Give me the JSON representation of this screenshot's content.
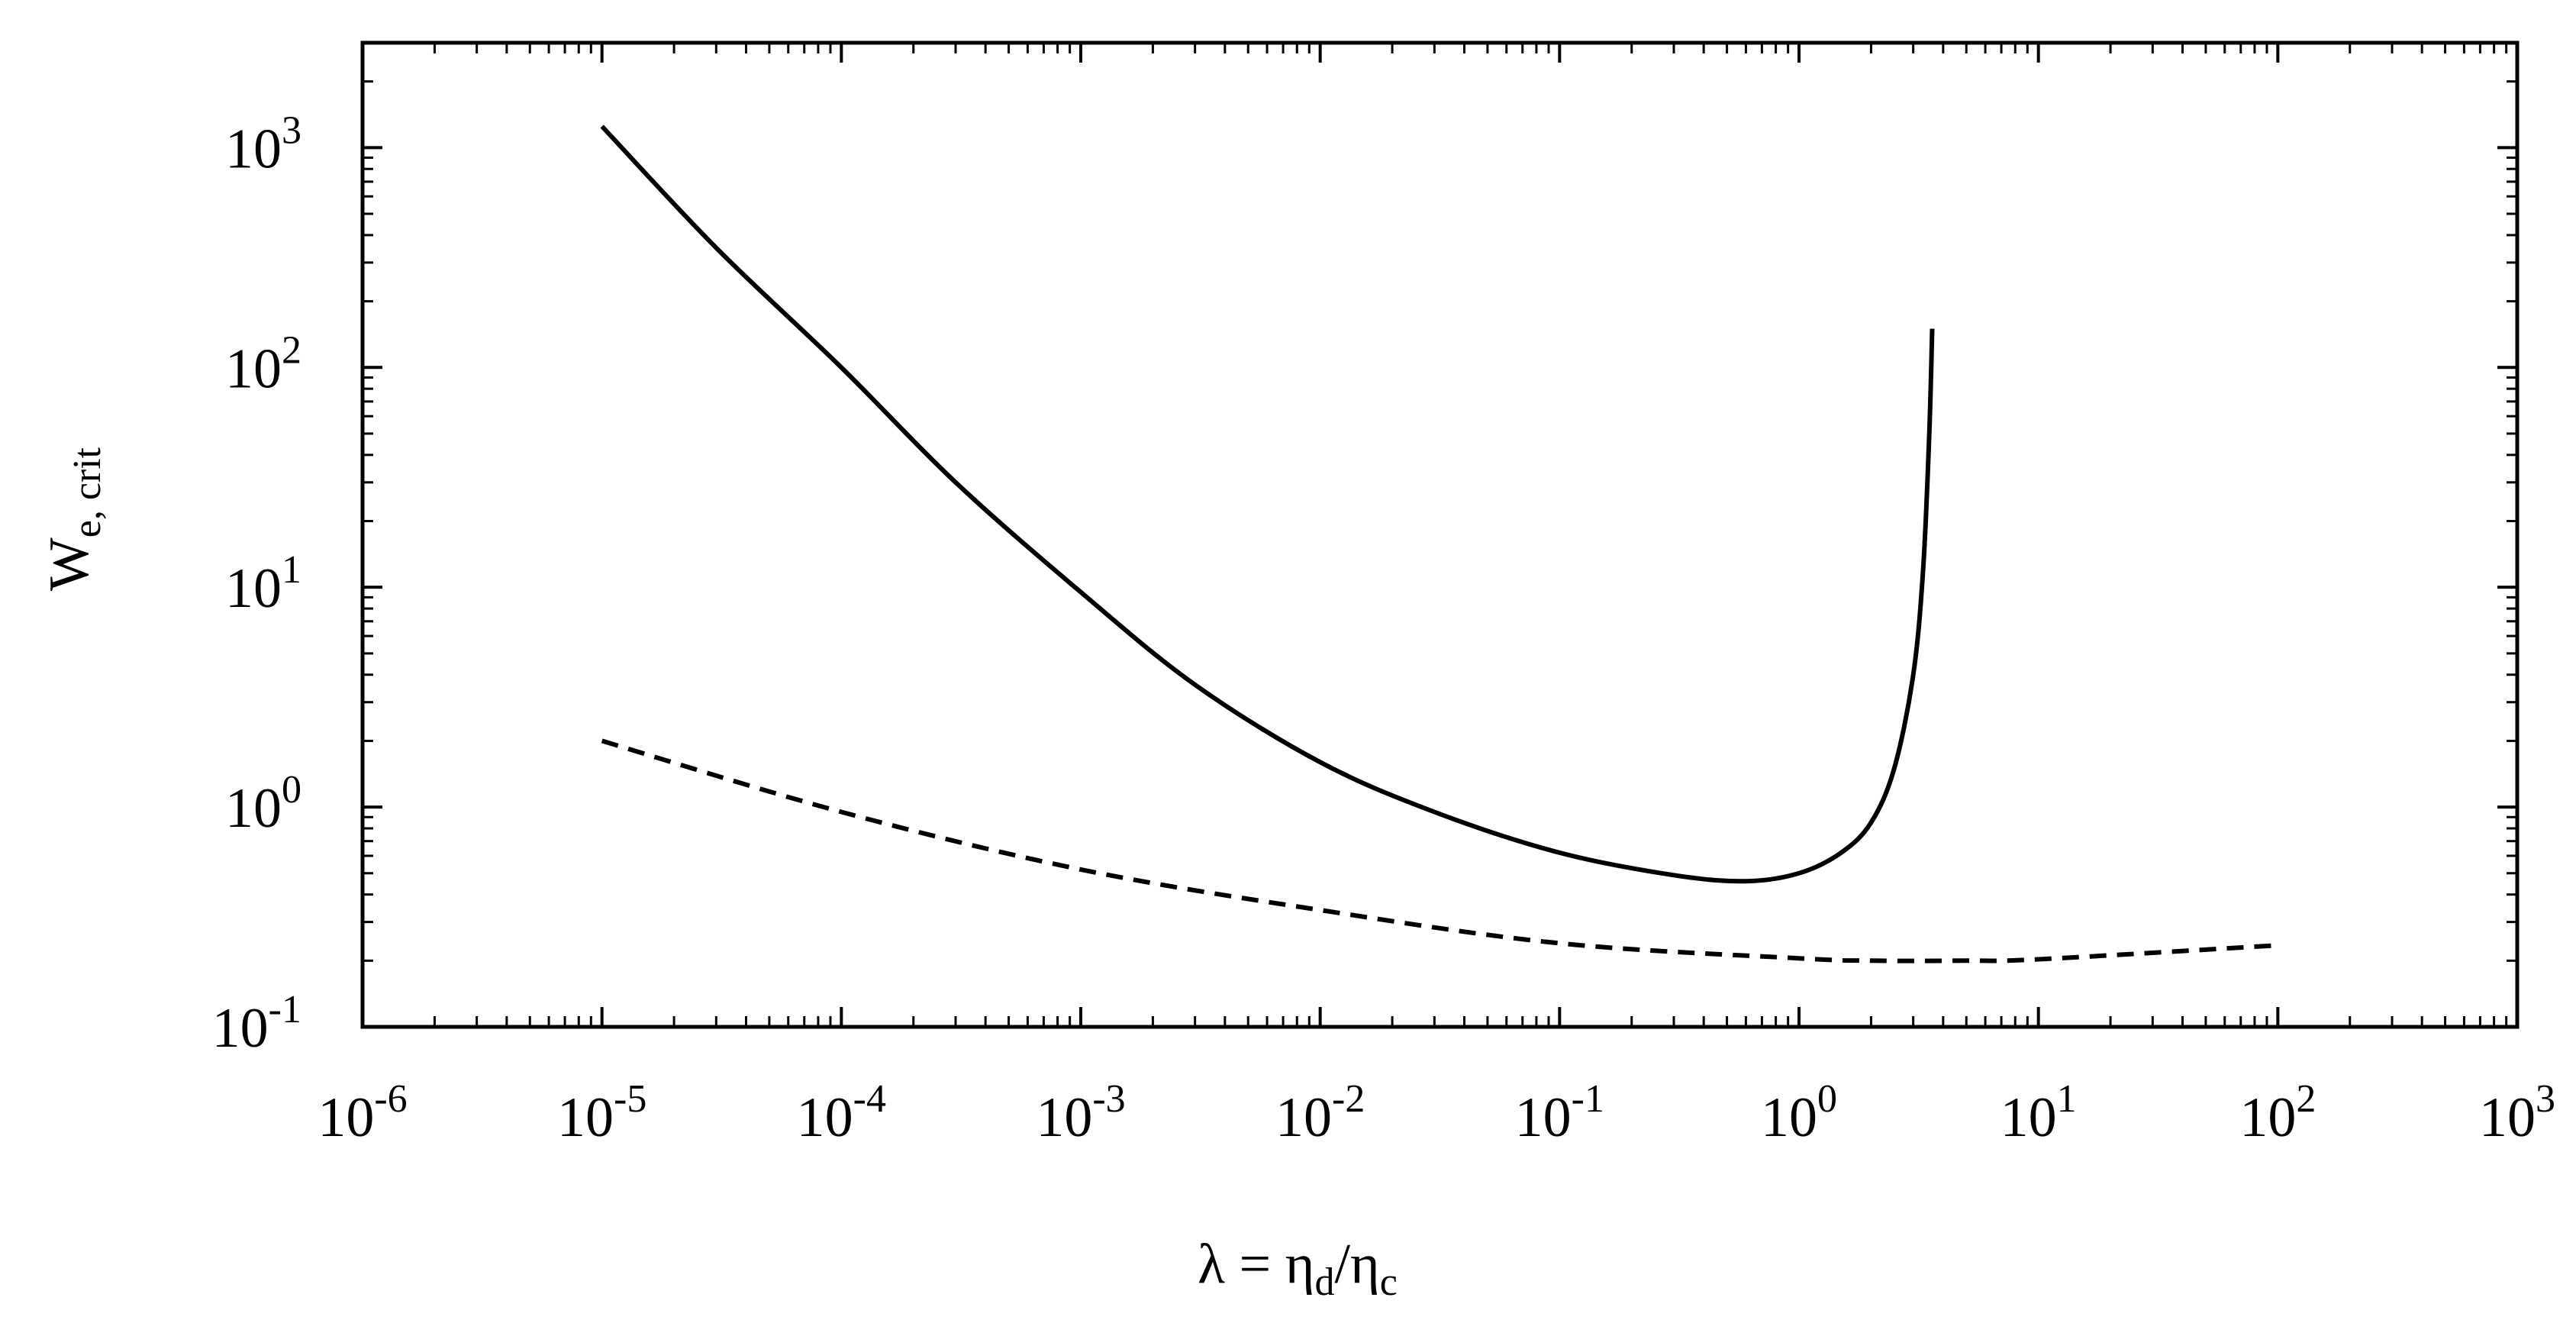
{
  "chart_data": {
    "type": "line",
    "xscale": "log",
    "yscale": "log",
    "xlim": [
      1e-06,
      1000.0
    ],
    "ylim": [
      0.1,
      3000
    ],
    "xlabel": {
      "base": "λ = η",
      "sub1": "d",
      "mid": "/η",
      "sub2": "c"
    },
    "ylabel": {
      "base": "W",
      "sub": "e, crit"
    },
    "x_ticks": [
      {
        "value": 1e-06,
        "mantissa": "10",
        "exp": "-6"
      },
      {
        "value": 1e-05,
        "mantissa": "10",
        "exp": "-5"
      },
      {
        "value": 0.0001,
        "mantissa": "10",
        "exp": "-4"
      },
      {
        "value": 0.001,
        "mantissa": "10",
        "exp": "-3"
      },
      {
        "value": 0.01,
        "mantissa": "10",
        "exp": "-2"
      },
      {
        "value": 0.1,
        "mantissa": "10",
        "exp": "-1"
      },
      {
        "value": 1,
        "mantissa": "10",
        "exp": "0"
      },
      {
        "value": 10,
        "mantissa": "10",
        "exp": "1"
      },
      {
        "value": 100,
        "mantissa": "10",
        "exp": "2"
      },
      {
        "value": 1000,
        "mantissa": "10",
        "exp": "3"
      }
    ],
    "y_ticks": [
      {
        "value": 0.1,
        "mantissa": "10",
        "exp": "-1"
      },
      {
        "value": 1,
        "mantissa": "10",
        "exp": "0"
      },
      {
        "value": 10,
        "mantissa": "10",
        "exp": "1"
      },
      {
        "value": 100,
        "mantissa": "10",
        "exp": "2"
      },
      {
        "value": 1000,
        "mantissa": "10",
        "exp": "3"
      }
    ],
    "series": [
      {
        "style": "solid",
        "color": "#000000",
        "x": [
          1e-05,
          3e-05,
          0.0001,
          0.0003,
          0.001,
          0.003,
          0.01,
          0.03,
          0.1,
          0.3,
          0.6,
          1.0,
          1.5,
          2.0,
          2.5,
          3.0,
          3.3,
          3.5,
          3.6
        ],
        "y": [
          1250,
          350,
          100,
          30,
          9.5,
          3.6,
          1.6,
          0.95,
          0.62,
          0.49,
          0.46,
          0.5,
          0.62,
          0.85,
          1.5,
          4,
          12,
          50,
          150
        ]
      },
      {
        "style": "dashed",
        "color": "#000000",
        "x": [
          1e-05,
          0.0001,
          0.001,
          0.01,
          0.1,
          1,
          2,
          5,
          10,
          100
        ],
        "y": [
          2.0,
          0.95,
          0.52,
          0.34,
          0.24,
          0.205,
          0.2,
          0.2,
          0.203,
          0.235
        ]
      }
    ]
  }
}
